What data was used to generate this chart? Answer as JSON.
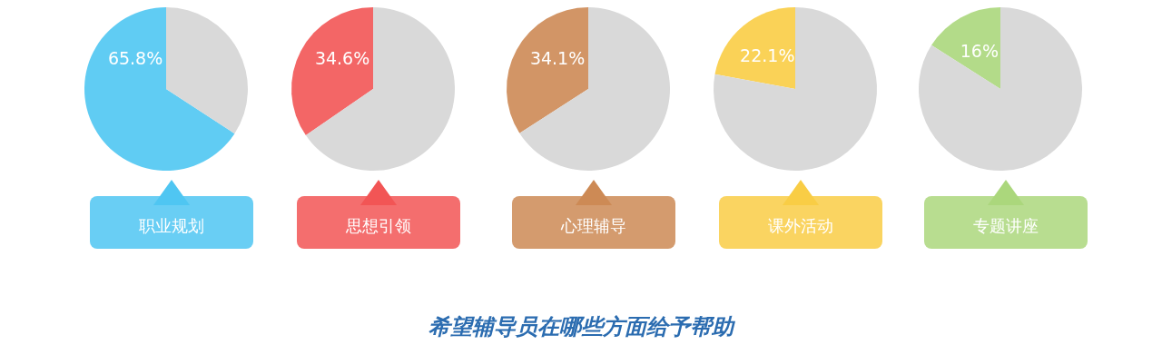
{
  "chart_data": [
    {
      "type": "pie",
      "categories": [
        "职业规划",
        null
      ],
      "values": [
        65.8,
        34.2
      ],
      "colors": [
        "#4fc6f2",
        "#d9d9d9"
      ],
      "value_labels": [
        "65.8%",
        null
      ]
    },
    {
      "type": "pie",
      "categories": [
        "思想引领",
        null
      ],
      "values": [
        34.6,
        65.4
      ],
      "colors": [
        "#f25555",
        "#d9d9d9"
      ],
      "value_labels": [
        "34.6%",
        null
      ]
    },
    {
      "type": "pie",
      "categories": [
        "心理辅导",
        null
      ],
      "values": [
        34.1,
        65.9
      ],
      "colors": [
        "#cd8a55",
        "#d9d9d9"
      ],
      "value_labels": [
        "34.1%",
        null
      ]
    },
    {
      "type": "pie",
      "categories": [
        "课外活动",
        null
      ],
      "values": [
        22.1,
        77.9
      ],
      "colors": [
        "#f9cd45",
        "#d9d9d9"
      ],
      "value_labels": [
        "22.1%",
        null
      ]
    },
    {
      "type": "pie",
      "categories": [
        "专题讲座",
        null
      ],
      "values": [
        16,
        84
      ],
      "colors": [
        "#abd77c",
        "#d9d9d9"
      ],
      "value_labels": [
        "16%",
        null
      ]
    },
    {
      "type": "other",
      "title": "希望辅导员在哪些方面给予帮助"
    }
  ]
}
